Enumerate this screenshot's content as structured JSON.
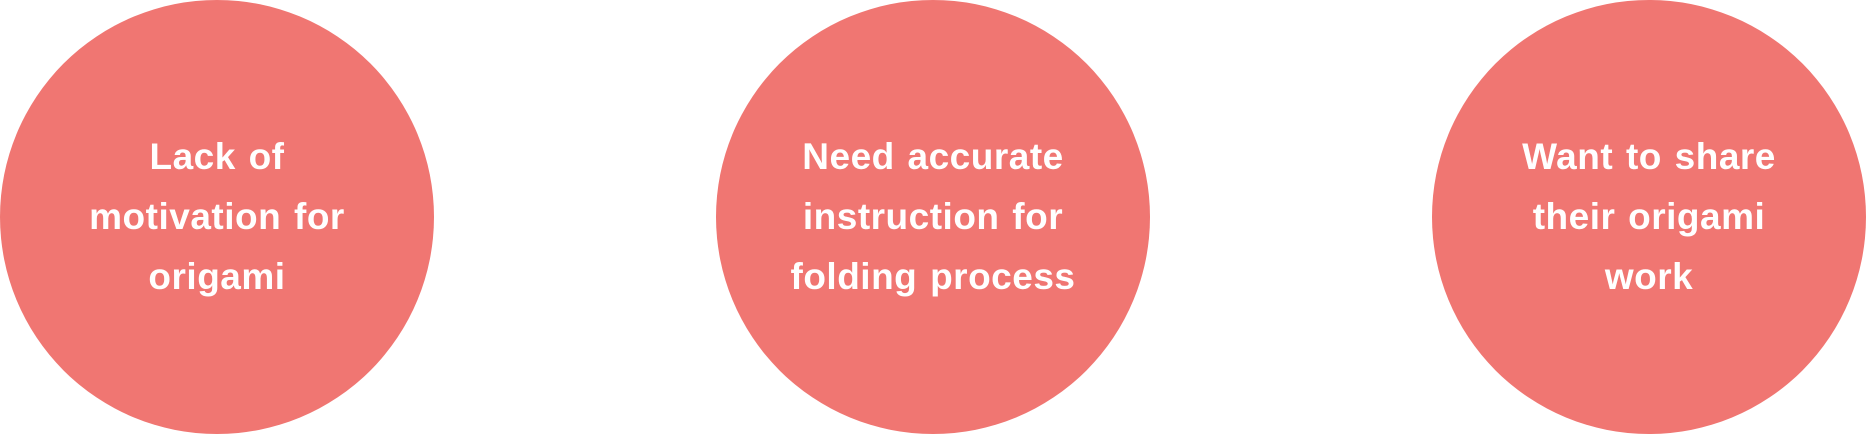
{
  "circles": [
    {
      "text": "Lack of motivation for origami"
    },
    {
      "text": "Need accurate instruction for folding process"
    },
    {
      "text": "Want to share their origami work"
    }
  ],
  "colors": {
    "circle_fill": "#f07672",
    "text": "#ffffff",
    "background": "#ffffff"
  }
}
